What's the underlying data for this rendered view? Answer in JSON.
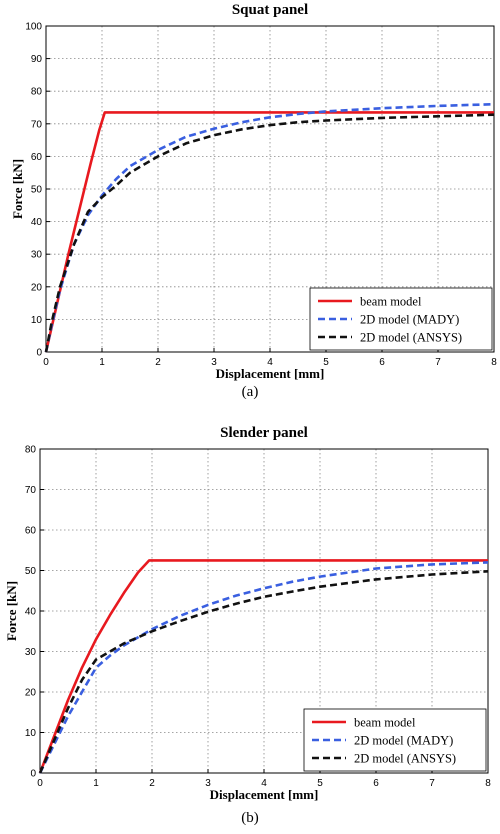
{
  "chart_data": [
    {
      "type": "line",
      "title": "Squat panel",
      "xlabel": "Displacement [mm]",
      "ylabel": "Force [kN]",
      "xlim": [
        0,
        8
      ],
      "ylim": [
        0,
        100
      ],
      "xticks": [
        "0",
        "1",
        "2",
        "3",
        "4",
        "5",
        "6",
        "7",
        "8"
      ],
      "yticks": [
        "0",
        "10",
        "20",
        "30",
        "40",
        "50",
        "60",
        "70",
        "80",
        "90",
        "100"
      ],
      "grid": true,
      "legend_position": "bottom-right",
      "caption": "(a)",
      "series": [
        {
          "name": "beam model",
          "color": "#e8191f",
          "dash": "solid",
          "points": [
            [
              0,
              0
            ],
            [
              0.2,
              15
            ],
            [
              0.4,
              30
            ],
            [
              0.6,
              44
            ],
            [
              0.8,
              58
            ],
            [
              0.95,
              68
            ],
            [
              1.05,
              73.5
            ],
            [
              2,
              73.5
            ],
            [
              3,
              73.5
            ],
            [
              4,
              73.5
            ],
            [
              5,
              73.5
            ],
            [
              6,
              73.5
            ],
            [
              7,
              73.5
            ],
            [
              8,
              73.5
            ]
          ]
        },
        {
          "name": "2D model (MADY)",
          "color": "#3a5fe0",
          "dash": "dashed",
          "points": [
            [
              0,
              0
            ],
            [
              0.1,
              8
            ],
            [
              0.25,
              19
            ],
            [
              0.5,
              33
            ],
            [
              0.75,
              42
            ],
            [
              1,
              48
            ],
            [
              1.25,
              53
            ],
            [
              1.5,
              57
            ],
            [
              2,
              62
            ],
            [
              2.5,
              66
            ],
            [
              3,
              68.5
            ],
            [
              3.5,
              70.5
            ],
            [
              4,
              72
            ],
            [
              4.5,
              73
            ],
            [
              5,
              73.8
            ],
            [
              6,
              74.8
            ],
            [
              7,
              75.5
            ],
            [
              8,
              76
            ]
          ]
        },
        {
          "name": "2D model (ANSYS)",
          "color": "#111111",
          "dash": "dashed",
          "points": [
            [
              0,
              0
            ],
            [
              0.1,
              9
            ],
            [
              0.25,
              20
            ],
            [
              0.5,
              33
            ],
            [
              0.75,
              43
            ],
            [
              1,
              47.5
            ],
            [
              1.25,
              51
            ],
            [
              1.5,
              55
            ],
            [
              2,
              60
            ],
            [
              2.5,
              64
            ],
            [
              3,
              66.5
            ],
            [
              3.5,
              68.3
            ],
            [
              4,
              69.6
            ],
            [
              4.5,
              70.5
            ],
            [
              5,
              71
            ],
            [
              6,
              71.8
            ],
            [
              7,
              72.3
            ],
            [
              8,
              72.8
            ]
          ]
        }
      ]
    },
    {
      "type": "line",
      "title": "Slender panel",
      "xlabel": "Displacement [mm]",
      "ylabel": "Force [kN]",
      "xlim": [
        0,
        8
      ],
      "ylim": [
        0,
        80
      ],
      "xticks": [
        "0",
        "1",
        "2",
        "3",
        "4",
        "5",
        "6",
        "7",
        "8"
      ],
      "yticks": [
        "0",
        "10",
        "20",
        "30",
        "40",
        "50",
        "60",
        "70",
        "80"
      ],
      "grid": true,
      "legend_position": "bottom-right",
      "caption": "(b)",
      "series": [
        {
          "name": "beam model",
          "color": "#e8191f",
          "dash": "solid",
          "points": [
            [
              0,
              0
            ],
            [
              0.25,
              9
            ],
            [
              0.5,
              18
            ],
            [
              0.75,
              26
            ],
            [
              1,
              33
            ],
            [
              1.25,
              39
            ],
            [
              1.5,
              44.5
            ],
            [
              1.75,
              49.5
            ],
            [
              1.95,
              52.5
            ],
            [
              2.5,
              52.5
            ],
            [
              3,
              52.5
            ],
            [
              4,
              52.5
            ],
            [
              5,
              52.5
            ],
            [
              6,
              52.5
            ],
            [
              7,
              52.5
            ],
            [
              8,
              52.5
            ]
          ]
        },
        {
          "name": "2D model (MADY)",
          "color": "#3a5fe0",
          "dash": "dashed",
          "points": [
            [
              0,
              0
            ],
            [
              0.25,
              7
            ],
            [
              0.5,
              14
            ],
            [
              0.75,
              20
            ],
            [
              1,
              26
            ],
            [
              1.25,
              29
            ],
            [
              1.5,
              31.5
            ],
            [
              2,
              35.5
            ],
            [
              2.5,
              38.8
            ],
            [
              3,
              41.5
            ],
            [
              3.5,
              43.8
            ],
            [
              4,
              45.6
            ],
            [
              4.5,
              47.2
            ],
            [
              5,
              48.5
            ],
            [
              6,
              50.5
            ],
            [
              7,
              51.5
            ],
            [
              8,
              52
            ]
          ]
        },
        {
          "name": "2D model (ANSYS)",
          "color": "#111111",
          "dash": "dashed",
          "points": [
            [
              0,
              0
            ],
            [
              0.25,
              8
            ],
            [
              0.5,
              16
            ],
            [
              0.75,
              23
            ],
            [
              1,
              28
            ],
            [
              1.25,
              30
            ],
            [
              1.5,
              32
            ],
            [
              2,
              35
            ],
            [
              2.5,
              37.5
            ],
            [
              3,
              39.8
            ],
            [
              3.5,
              41.8
            ],
            [
              4,
              43.5
            ],
            [
              4.5,
              44.8
            ],
            [
              5,
              46
            ],
            [
              6,
              47.8
            ],
            [
              7,
              49
            ],
            [
              8,
              49.8
            ]
          ]
        }
      ]
    }
  ]
}
